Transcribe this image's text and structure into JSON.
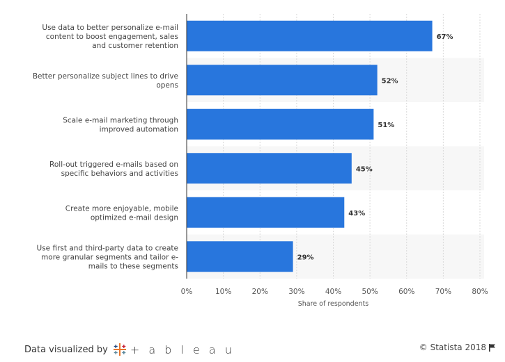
{
  "chart_data": {
    "type": "bar",
    "orientation": "horizontal",
    "categories": [
      "Use data to better personalize e-mail content to boost engagement, sales and customer retention",
      "Better personalize subject lines to drive opens",
      "Scale e-mail marketing through improved automation",
      "Roll-out triggered e-mails based on specific behaviors and activities",
      "Create more enjoyable, mobile optimized e-mail design",
      "Use first and third-party data to create more granular segments and tailor e-mails to these segments"
    ],
    "category_lines": [
      [
        "Use data to better personalize e-mail",
        "content to boost engagement, sales",
        "and customer retention"
      ],
      [
        "Better personalize subject lines to drive",
        "opens"
      ],
      [
        "Scale e-mail marketing through",
        "improved automation"
      ],
      [
        "Roll-out triggered e-mails based on",
        "specific behaviors and activities"
      ],
      [
        "Create more enjoyable, mobile",
        "optimized e-mail design"
      ],
      [
        "Use first and third-party data to create",
        "more granular segments and tailor e-",
        "mails to these segments"
      ]
    ],
    "values": [
      67,
      52,
      51,
      45,
      43,
      29
    ],
    "value_labels": [
      "67%",
      "52%",
      "51%",
      "45%",
      "43%",
      "29%"
    ],
    "xlabel": "Share of respondents",
    "ylabel": "",
    "xlim": [
      0,
      80
    ],
    "xticks": [
      0,
      10,
      20,
      30,
      40,
      50,
      60,
      70,
      80
    ],
    "xtick_labels": [
      "0%",
      "10%",
      "20%",
      "30%",
      "40%",
      "50%",
      "60%",
      "70%",
      "80%"
    ],
    "grid": true,
    "bar_color": "#2876dd",
    "band_color": "#f7f7f7",
    "grid_color": "#d9d9d9"
  },
  "footer": {
    "visualized_by": "Data visualized by",
    "tableau_word": "+ a b l e a u",
    "tableau_icon": "tableau-logo-icon",
    "copyright": "© Statista 2018",
    "flag_icon": "flag-icon"
  }
}
